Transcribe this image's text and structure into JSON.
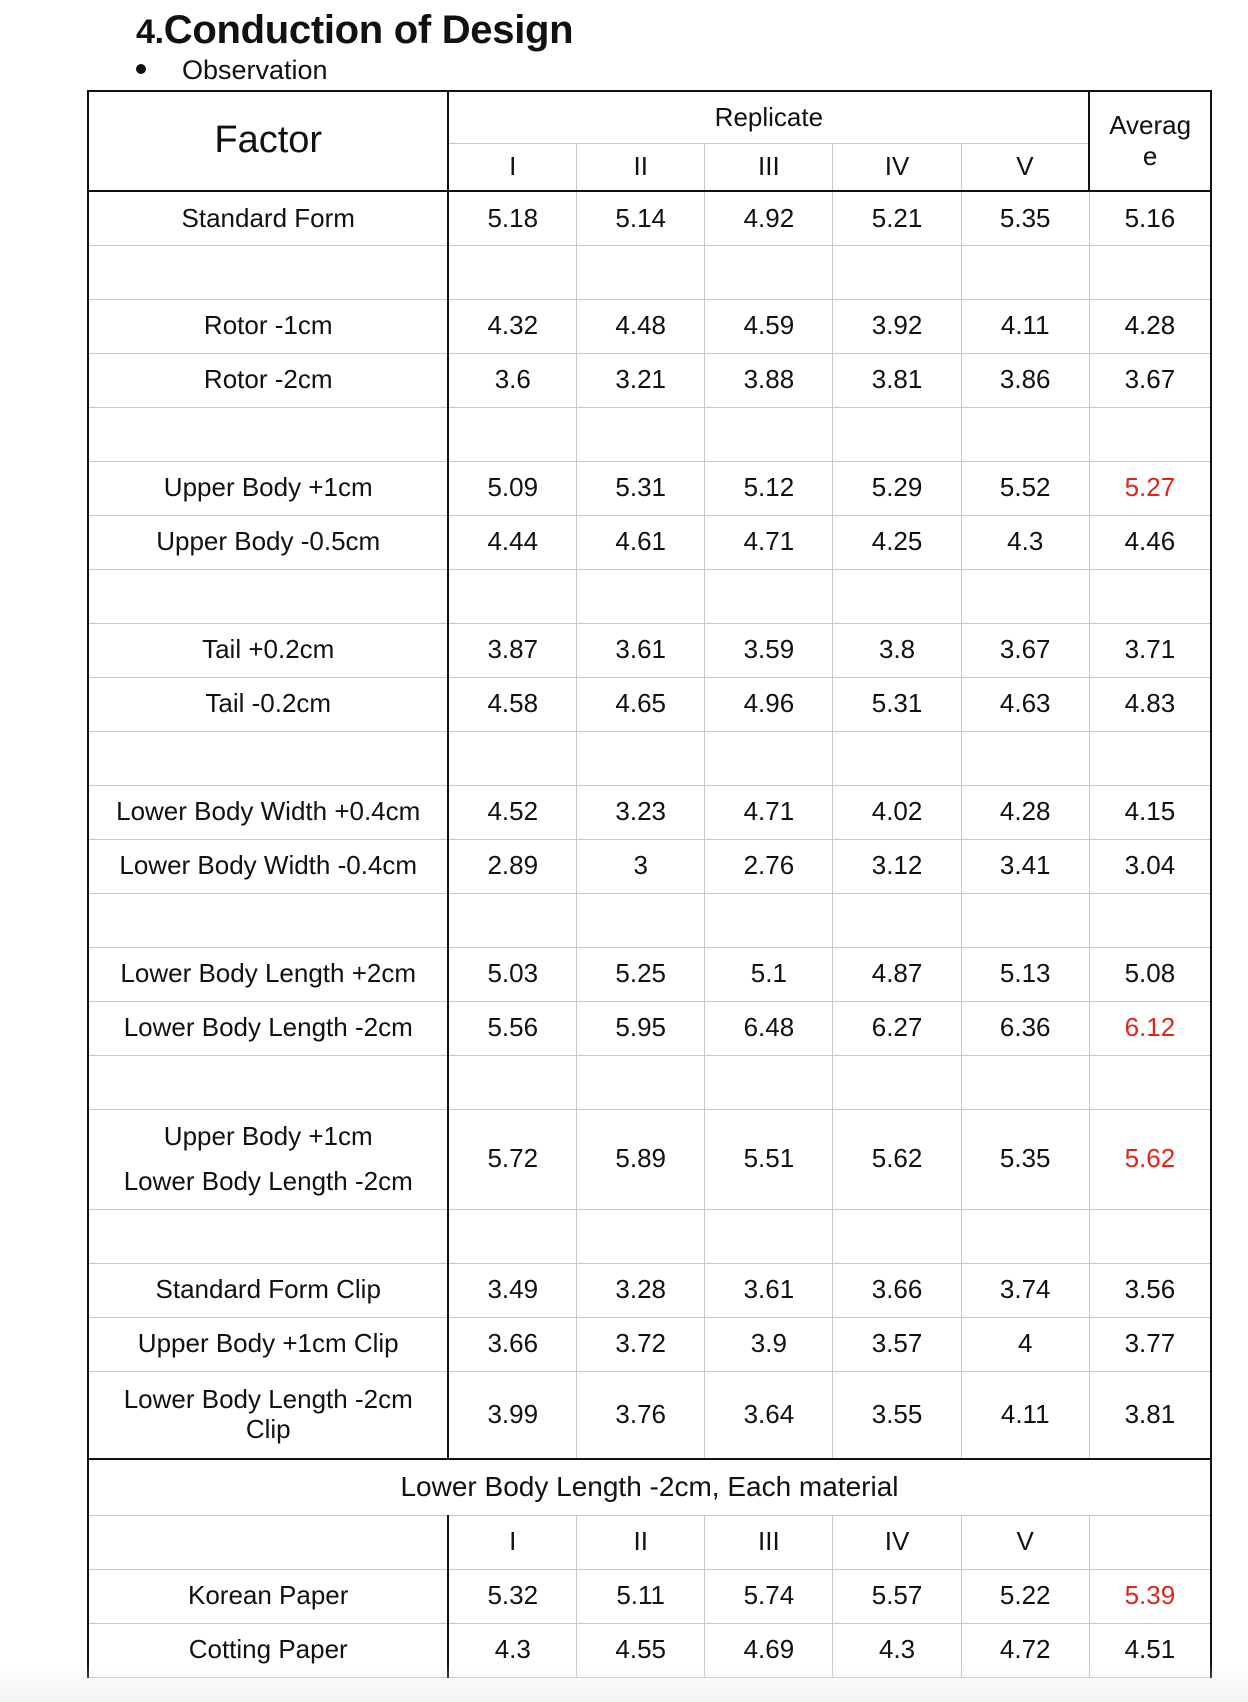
{
  "heading": {
    "number": "4.",
    "title": "Conduction of Design"
  },
  "bullet": "Observation",
  "table": {
    "factor_header": "Factor",
    "replicate_header": "Replicate",
    "average_header_line1": "Averag",
    "average_header_line2": "e",
    "replicate_columns": [
      "I",
      "II",
      "III",
      "IV",
      "V"
    ],
    "rows": [
      {
        "factor": "Standard Form",
        "values": [
          "5.18",
          "5.14",
          "4.92",
          "5.21",
          "5.35"
        ],
        "avg": "5.16"
      },
      {
        "factor": "Rotor -1cm",
        "values": [
          "4.32",
          "4.48",
          "4.59",
          "3.92",
          "4.11"
        ],
        "avg": "4.28"
      },
      {
        "factor": "Rotor -2cm",
        "values": [
          "3.6",
          "3.21",
          "3.88",
          "3.81",
          "3.86"
        ],
        "avg": "3.67"
      },
      {
        "factor": "Upper Body +1cm",
        "values": [
          "5.09",
          "5.31",
          "5.12",
          "5.29",
          "5.52"
        ],
        "avg": "5.27"
      },
      {
        "factor": "Upper Body -0.5cm",
        "values": [
          "4.44",
          "4.61",
          "4.71",
          "4.25",
          "4.3"
        ],
        "avg": "4.46"
      },
      {
        "factor": "Tail +0.2cm",
        "values": [
          "3.87",
          "3.61",
          "3.59",
          "3.8",
          "3.67"
        ],
        "avg": "3.71"
      },
      {
        "factor": "Tail -0.2cm",
        "values": [
          "4.58",
          "4.65",
          "4.96",
          "5.31",
          "4.63"
        ],
        "avg": "4.83"
      },
      {
        "factor": "Lower Body Width +0.4cm",
        "values": [
          "4.52",
          "3.23",
          "4.71",
          "4.02",
          "4.28"
        ],
        "avg": "4.15"
      },
      {
        "factor": "Lower Body Width -0.4cm",
        "values": [
          "2.89",
          "3",
          "2.76",
          "3.12",
          "3.41"
        ],
        "avg": "3.04"
      },
      {
        "factor": "Lower Body Length +2cm",
        "values": [
          "5.03",
          "5.25",
          "5.1",
          "4.87",
          "5.13"
        ],
        "avg": "5.08"
      },
      {
        "factor": "Lower Body Length -2cm",
        "values": [
          "5.56",
          "5.95",
          "6.48",
          "6.27",
          "6.36"
        ],
        "avg": "6.12"
      },
      {
        "factor_line1": "Upper Body +1cm",
        "factor_line2": "Lower Body Length -2cm",
        "values": [
          "5.72",
          "5.89",
          "5.51",
          "5.62",
          "5.35"
        ],
        "avg": "5.62"
      },
      {
        "factor": "Standard Form Clip",
        "values": [
          "3.49",
          "3.28",
          "3.61",
          "3.66",
          "3.74"
        ],
        "avg": "3.56"
      },
      {
        "factor": "Upper Body +1cm Clip",
        "values": [
          "3.66",
          "3.72",
          "3.9",
          "3.57",
          "4"
        ],
        "avg": "3.77"
      },
      {
        "factor_line1": "Lower Body Length -2cm",
        "factor_line2": "Clip",
        "values": [
          "3.99",
          "3.76",
          "3.64",
          "3.55",
          "4.11"
        ],
        "avg": "3.81"
      }
    ],
    "material_section_title": "Lower Body Length -2cm, Each material",
    "material_rows": [
      {
        "factor": "Korean Paper",
        "values": [
          "5.32",
          "5.11",
          "5.74",
          "5.57",
          "5.22"
        ],
        "avg": "5.39"
      },
      {
        "factor": "Cotting Paper",
        "values": [
          "4.3",
          "4.55",
          "4.69",
          "4.3",
          "4.72"
        ],
        "avg": "4.51"
      }
    ]
  },
  "colors": {
    "highlight": "#e0261b",
    "text": "#111111",
    "grid": "#c8c8c8"
  }
}
